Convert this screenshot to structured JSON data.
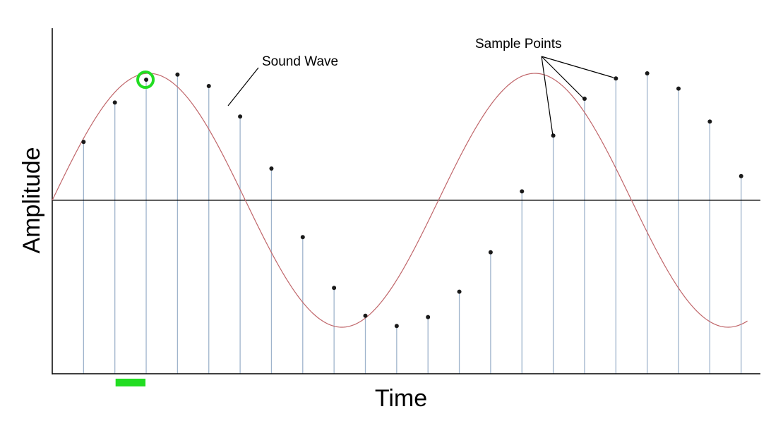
{
  "labels": {
    "x_axis": "Time",
    "y_axis": "Amplitude",
    "wave": "Sound Wave",
    "samples": "Sample Points"
  },
  "colors": {
    "wave": "#c0666a",
    "stem": "#9fb4cc",
    "axis": "#000000",
    "point": "#1a1a1a",
    "highlight": "#22dd22"
  },
  "chart_data": {
    "type": "line",
    "title": "",
    "xlabel": "Time",
    "ylabel": "Amplitude",
    "wave": {
      "name": "Sound Wave",
      "x_start": 0,
      "x_end": 22.2,
      "amplitude": 1,
      "cycles": 1.8
    },
    "sample_points": {
      "name": "Sample Points",
      "x": [
        1,
        2,
        3,
        4,
        5,
        6,
        7,
        8,
        9,
        10,
        11,
        12,
        13,
        14,
        15,
        16,
        17,
        18,
        19,
        20,
        21,
        22
      ],
      "y": [
        0.46,
        0.77,
        0.95,
        0.99,
        0.9,
        0.66,
        0.25,
        -0.29,
        -0.69,
        -0.91,
        -0.99,
        -0.92,
        -0.72,
        -0.41,
        0.07,
        0.51,
        0.8,
        0.96,
        1.0,
        0.88,
        0.62,
        0.19
      ]
    },
    "highlighted_sample_index": 2,
    "highlighted_interval": [
      2,
      3
    ],
    "ylim": [
      -1.35,
      1.35
    ],
    "grid": false,
    "legend": "none"
  }
}
